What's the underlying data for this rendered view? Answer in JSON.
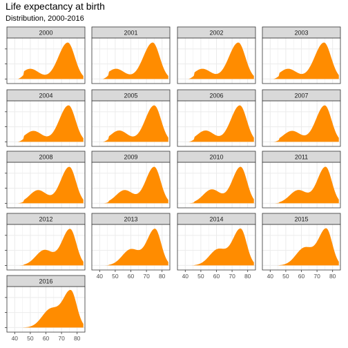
{
  "title": "Life expectancy at birth",
  "subtitle": "Distribution, 2000-2016",
  "colors": {
    "fill": "#ff8c00",
    "strip": "#d9d9d9",
    "border": "#333333",
    "grid": "#ebebeb"
  },
  "chart_data": {
    "type": "area",
    "subtype": "density",
    "title": "Life expectancy at birth",
    "subtitle": "Distribution, 2000-2016",
    "xlabel": "",
    "ylabel": "",
    "xlim": [
      35,
      85
    ],
    "x_ticks": [
      40,
      50,
      60,
      70,
      80
    ],
    "y_axis_labels_shown": false,
    "grid": true,
    "layout": {
      "facet_by": "year",
      "ncol": 4
    },
    "panels": [
      {
        "year": "2000",
        "peak_x": 74,
        "secondary_x": 50,
        "secondary_h": 0.28,
        "spread": 6.0
      },
      {
        "year": "2001",
        "peak_x": 74,
        "secondary_x": 50.5,
        "secondary_h": 0.28,
        "spread": 6.0
      },
      {
        "year": "2002",
        "peak_x": 74,
        "secondary_x": 51,
        "secondary_h": 0.28,
        "spread": 6.0
      },
      {
        "year": "2003",
        "peak_x": 74.5,
        "secondary_x": 51.5,
        "secondary_h": 0.28,
        "spread": 6.0
      },
      {
        "year": "2004",
        "peak_x": 74.5,
        "secondary_x": 52,
        "secondary_h": 0.3,
        "spread": 5.9
      },
      {
        "year": "2005",
        "peak_x": 75,
        "secondary_x": 52.5,
        "secondary_h": 0.31,
        "spread": 5.8
      },
      {
        "year": "2006",
        "peak_x": 75,
        "secondary_x": 53,
        "secondary_h": 0.31,
        "spread": 5.8
      },
      {
        "year": "2007",
        "peak_x": 75,
        "secondary_x": 54,
        "secondary_h": 0.3,
        "spread": 5.7
      },
      {
        "year": "2008",
        "peak_x": 75,
        "secondary_x": 55,
        "secondary_h": 0.36,
        "spread": 5.6
      },
      {
        "year": "2009",
        "peak_x": 75,
        "secondary_x": 56,
        "secondary_h": 0.36,
        "spread": 5.5
      },
      {
        "year": "2010",
        "peak_x": 75.5,
        "secondary_x": 57,
        "secondary_h": 0.38,
        "spread": 5.4
      },
      {
        "year": "2011",
        "peak_x": 75.5,
        "secondary_x": 58,
        "secondary_h": 0.36,
        "spread": 5.3
      },
      {
        "year": "2012",
        "peak_x": 75.5,
        "secondary_x": 59,
        "secondary_h": 0.42,
        "spread": 5.3
      },
      {
        "year": "2013",
        "peak_x": 75.5,
        "secondary_x": 60,
        "secondary_h": 0.44,
        "spread": 5.2
      },
      {
        "year": "2014",
        "peak_x": 75.5,
        "secondary_x": 61,
        "secondary_h": 0.44,
        "spread": 5.1
      },
      {
        "year": "2015",
        "peak_x": 76,
        "secondary_x": 62,
        "secondary_h": 0.48,
        "spread": 5.0
      },
      {
        "year": "2016",
        "peak_x": 76,
        "secondary_x": 63,
        "secondary_h": 0.5,
        "spread": 5.0
      }
    ]
  }
}
